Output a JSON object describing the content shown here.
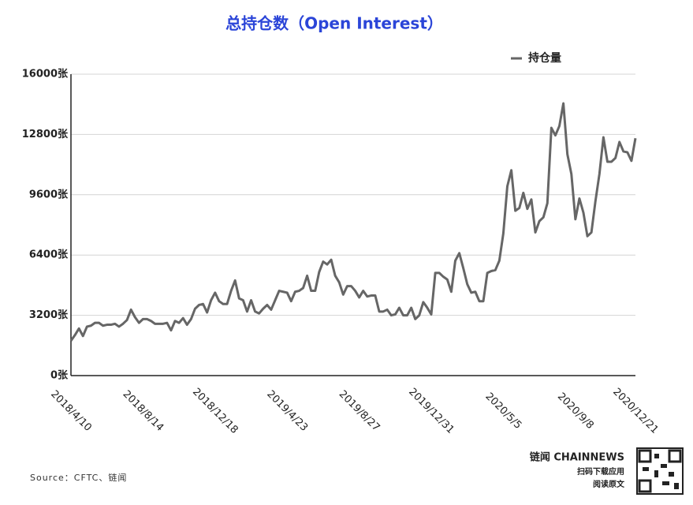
{
  "chart_data": {
    "type": "line",
    "title": "总持仓数（Open Interest）",
    "source": "Source：CFTC、链闻",
    "brand": {
      "name": "链闻 CHAINNEWS",
      "line1": "扫码下载应用",
      "line2": "阅读原文"
    },
    "legend_position": "top-right",
    "grid": true,
    "ylim": [
      0,
      16000
    ],
    "yticks": [
      {
        "value": 0,
        "label": "0张"
      },
      {
        "value": 3200,
        "label": "3200张"
      },
      {
        "value": 6400,
        "label": "6400张"
      },
      {
        "value": 9600,
        "label": "9600张"
      },
      {
        "value": 12800,
        "label": "12800张"
      },
      {
        "value": 16000,
        "label": "16000张"
      }
    ],
    "categories": [
      "2018/4/10",
      null,
      null,
      null,
      null,
      null,
      null,
      null,
      null,
      null,
      null,
      null,
      null,
      null,
      null,
      null,
      null,
      null,
      "2018/8/14",
      null,
      null,
      null,
      null,
      null,
      null,
      null,
      null,
      null,
      null,
      null,
      null,
      null,
      null,
      null,
      null,
      null,
      "2018/12/18",
      null,
      null,
      null,
      null,
      null,
      null,
      null,
      null,
      null,
      null,
      null,
      null,
      null,
      null,
      null,
      null,
      null,
      "2019/4/23",
      null,
      null,
      null,
      null,
      null,
      null,
      null,
      null,
      null,
      null,
      null,
      null,
      null,
      null,
      null,
      null,
      null,
      "2019/8/27",
      null,
      null,
      null,
      null,
      null,
      null,
      null,
      null,
      null,
      null,
      null,
      null,
      null,
      null,
      null,
      null,
      null,
      "2019/12/31",
      null,
      null,
      null,
      null,
      null,
      null,
      null,
      null,
      null,
      null,
      null,
      null,
      null,
      null,
      null,
      null,
      null,
      "2020/5/5",
      null,
      null,
      null,
      null,
      null,
      null,
      null,
      null,
      null,
      null,
      null,
      null,
      null,
      null,
      null,
      null,
      null,
      "2020/9/8",
      null,
      null,
      null,
      null,
      null,
      null,
      null,
      null,
      null,
      null,
      null,
      null,
      null,
      null,
      "2020/12/21"
    ],
    "series": [
      {
        "name": "持仓量",
        "color": "#666666",
        "values": [
          1850,
          2150,
          2500,
          2100,
          2600,
          2650,
          2800,
          2800,
          2650,
          2700,
          2700,
          2750,
          2600,
          2750,
          2950,
          3500,
          3100,
          2800,
          3000,
          3000,
          2900,
          2750,
          2750,
          2750,
          2800,
          2400,
          2900,
          2800,
          3050,
          2700,
          3000,
          3550,
          3750,
          3800,
          3350,
          4000,
          4400,
          3950,
          3800,
          3800,
          4500,
          5050,
          4100,
          4000,
          3400,
          4000,
          3400,
          3300,
          3550,
          3750,
          3500,
          4000,
          4500,
          4450,
          4400,
          3950,
          4450,
          4500,
          4650,
          5300,
          4500,
          4500,
          5500,
          6050,
          5900,
          6150,
          5300,
          4950,
          4300,
          4750,
          4750,
          4500,
          4150,
          4500,
          4200,
          4250,
          4250,
          3400,
          3400,
          3500,
          3200,
          3250,
          3600,
          3200,
          3200,
          3600,
          3000,
          3200,
          3900,
          3600,
          3250,
          5450,
          5450,
          5250,
          5100,
          4450,
          6100,
          6500,
          5700,
          4850,
          4400,
          4450,
          3950,
          3950,
          5450,
          5550,
          5600,
          6100,
          7550,
          10050,
          10900,
          8750,
          8900,
          9700,
          8850,
          9350,
          7600,
          8200,
          8400,
          9150,
          13150,
          12750,
          13250,
          14450,
          11750,
          10700,
          8300,
          9400,
          8650,
          7400,
          7600,
          9250,
          10700,
          12650,
          11350,
          11350,
          11550,
          12400,
          11900,
          11850,
          11400,
          12600
        ]
      }
    ]
  }
}
